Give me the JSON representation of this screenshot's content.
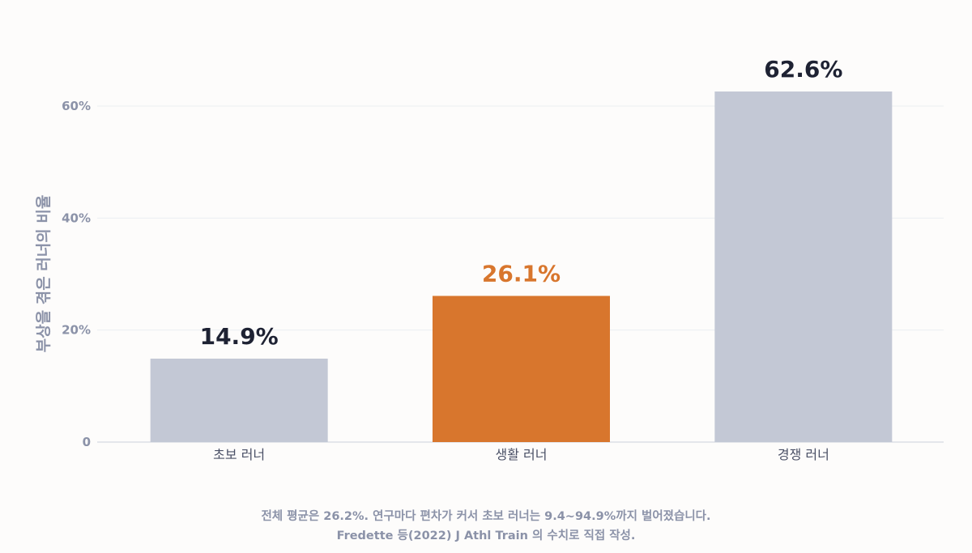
{
  "chart_data": {
    "type": "bar",
    "categories": [
      "초보 러너",
      "생활 러너",
      "경쟁 러너"
    ],
    "values": [
      14.9,
      26.1,
      62.6
    ],
    "data_labels": [
      "14.9%",
      "26.1%",
      "62.6%"
    ],
    "highlight_index": 1,
    "colors": {
      "default": "#c3c8d5",
      "highlight": "#d8762d",
      "label_default": "#1e2233",
      "label_highlight": "#d8762d"
    },
    "ylabel": "부상을 겪은 러너의 비율",
    "ylim": [
      0,
      70
    ],
    "yticks": [
      0,
      20,
      40,
      60
    ],
    "ytick_labels": [
      "0",
      "20%",
      "40%",
      "60%"
    ],
    "grid": true
  },
  "notes": {
    "line1": "전체 평균은 26.2%. 연구마다 편차가 커서 초보 러너는 9.4~94.9%까지 벌어졌습니다.",
    "line2": "Fredette 등(2022) J Athl Train 의 수치로 직접 작성."
  }
}
